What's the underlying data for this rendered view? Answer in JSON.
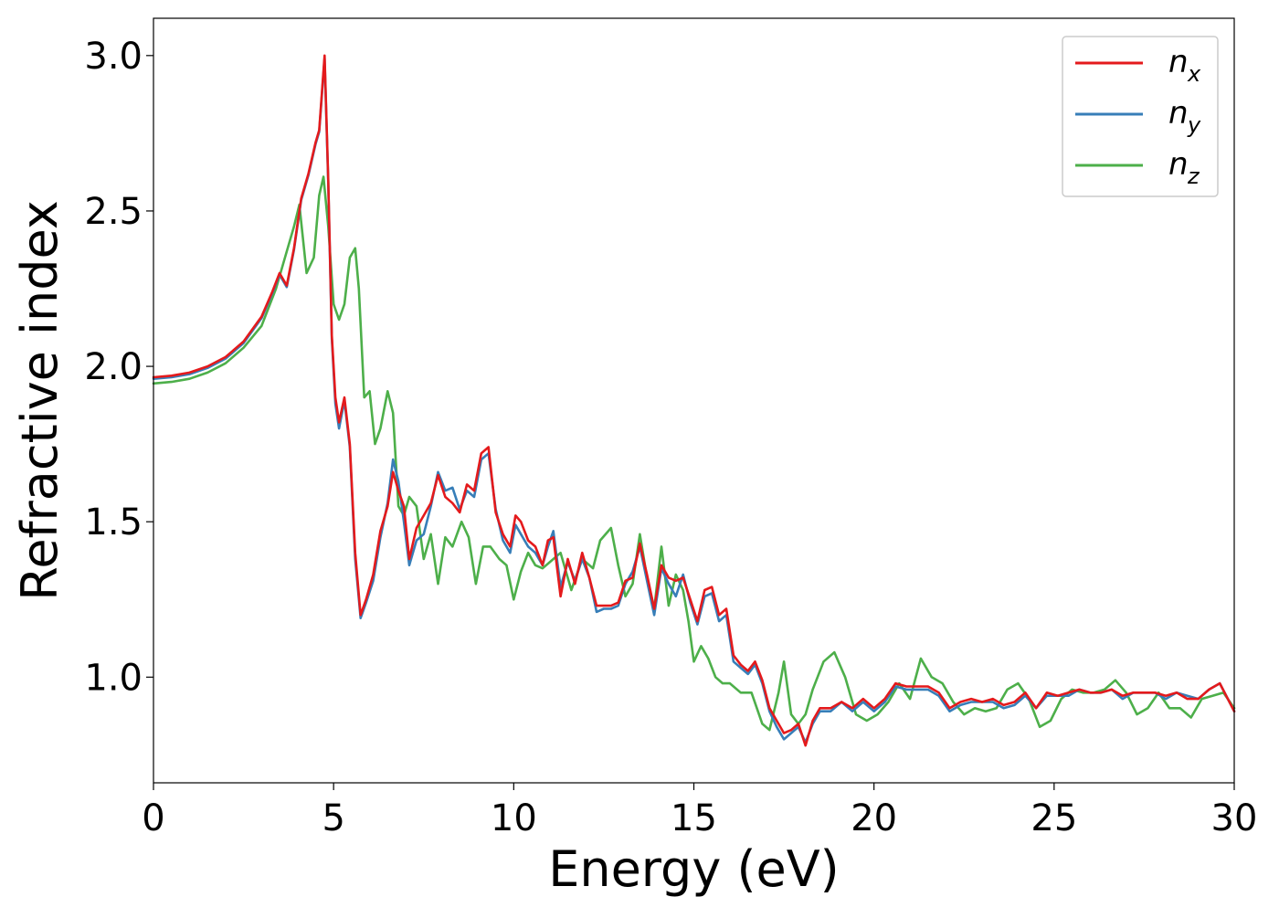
{
  "chart_data": {
    "type": "line",
    "title": "",
    "xlabel": "Energy (eV)",
    "ylabel": "Refractive index",
    "xlim": [
      0,
      30
    ],
    "ylim": [
      0.66,
      3.12
    ],
    "xticks": [
      0,
      5,
      10,
      15,
      20,
      25,
      30
    ],
    "yticks": [
      1.0,
      1.5,
      2.0,
      2.5,
      3.0
    ],
    "xtick_labels": [
      "0",
      "5",
      "10",
      "15",
      "20",
      "25",
      "30"
    ],
    "ytick_labels": [
      "1.0",
      "1.5",
      "2.0",
      "2.5",
      "3.0"
    ],
    "grid": false,
    "legend_position": "top-right",
    "series": [
      {
        "name": "n_x",
        "legend_base": "n",
        "legend_sub": "x",
        "color": "#e41a1c",
        "x": [
          0,
          0.5,
          1.0,
          1.5,
          2.0,
          2.5,
          3.0,
          3.3,
          3.5,
          3.7,
          3.9,
          4.1,
          4.3,
          4.5,
          4.6,
          4.75,
          4.85,
          4.95,
          5.05,
          5.15,
          5.3,
          5.45,
          5.6,
          5.75,
          5.9,
          6.1,
          6.3,
          6.5,
          6.65,
          6.8,
          6.95,
          7.1,
          7.3,
          7.5,
          7.7,
          7.9,
          8.1,
          8.3,
          8.5,
          8.7,
          8.9,
          9.1,
          9.3,
          9.5,
          9.7,
          9.9,
          10.05,
          10.2,
          10.4,
          10.6,
          10.8,
          10.95,
          11.1,
          11.3,
          11.5,
          11.7,
          11.9,
          12.1,
          12.3,
          12.5,
          12.7,
          12.9,
          13.1,
          13.3,
          13.5,
          13.7,
          13.9,
          14.1,
          14.3,
          14.5,
          14.7,
          14.9,
          15.1,
          15.3,
          15.5,
          15.7,
          15.9,
          16.1,
          16.3,
          16.5,
          16.7,
          16.9,
          17.1,
          17.3,
          17.5,
          17.7,
          17.9,
          18.1,
          18.3,
          18.5,
          18.8,
          19.1,
          19.4,
          19.7,
          20.0,
          20.3,
          20.6,
          20.9,
          21.2,
          21.5,
          21.8,
          22.1,
          22.4,
          22.7,
          23.0,
          23.3,
          23.6,
          23.9,
          24.2,
          24.5,
          24.8,
          25.1,
          25.4,
          25.7,
          26.0,
          26.3,
          26.6,
          26.9,
          27.2,
          27.5,
          27.8,
          28.1,
          28.4,
          28.7,
          29.0,
          29.3,
          29.6,
          30.0
        ],
        "y": [
          1.965,
          1.97,
          1.98,
          2.0,
          2.03,
          2.08,
          2.16,
          2.24,
          2.3,
          2.26,
          2.38,
          2.54,
          2.62,
          2.72,
          2.76,
          3.0,
          2.6,
          2.1,
          1.9,
          1.82,
          1.9,
          1.75,
          1.4,
          1.2,
          1.25,
          1.33,
          1.47,
          1.55,
          1.66,
          1.6,
          1.55,
          1.38,
          1.48,
          1.52,
          1.56,
          1.65,
          1.58,
          1.56,
          1.53,
          1.62,
          1.6,
          1.72,
          1.74,
          1.53,
          1.46,
          1.42,
          1.52,
          1.5,
          1.44,
          1.42,
          1.36,
          1.44,
          1.45,
          1.26,
          1.38,
          1.3,
          1.4,
          1.32,
          1.23,
          1.23,
          1.23,
          1.24,
          1.31,
          1.32,
          1.43,
          1.33,
          1.22,
          1.36,
          1.32,
          1.31,
          1.32,
          1.25,
          1.18,
          1.28,
          1.29,
          1.2,
          1.22,
          1.07,
          1.04,
          1.02,
          1.05,
          0.99,
          0.9,
          0.86,
          0.82,
          0.83,
          0.85,
          0.78,
          0.86,
          0.9,
          0.9,
          0.92,
          0.9,
          0.93,
          0.9,
          0.93,
          0.98,
          0.97,
          0.97,
          0.97,
          0.95,
          0.9,
          0.92,
          0.93,
          0.92,
          0.93,
          0.91,
          0.92,
          0.95,
          0.9,
          0.95,
          0.94,
          0.95,
          0.96,
          0.95,
          0.95,
          0.96,
          0.94,
          0.95,
          0.95,
          0.95,
          0.94,
          0.95,
          0.93,
          0.93,
          0.96,
          0.98,
          0.89
        ]
      },
      {
        "name": "n_y",
        "legend_base": "n",
        "legend_sub": "y",
        "color": "#377eb8",
        "x": [
          0,
          0.5,
          1.0,
          1.5,
          2.0,
          2.5,
          3.0,
          3.3,
          3.5,
          3.7,
          3.9,
          4.1,
          4.3,
          4.5,
          4.6,
          4.75,
          4.85,
          4.95,
          5.05,
          5.15,
          5.3,
          5.45,
          5.6,
          5.75,
          5.9,
          6.1,
          6.3,
          6.5,
          6.65,
          6.8,
          6.95,
          7.1,
          7.3,
          7.5,
          7.7,
          7.9,
          8.1,
          8.3,
          8.5,
          8.7,
          8.9,
          9.1,
          9.3,
          9.5,
          9.7,
          9.9,
          10.05,
          10.2,
          10.4,
          10.6,
          10.8,
          10.95,
          11.1,
          11.3,
          11.5,
          11.7,
          11.9,
          12.1,
          12.3,
          12.5,
          12.7,
          12.9,
          13.1,
          13.3,
          13.5,
          13.7,
          13.9,
          14.1,
          14.3,
          14.5,
          14.7,
          14.9,
          15.1,
          15.3,
          15.5,
          15.7,
          15.9,
          16.1,
          16.3,
          16.5,
          16.7,
          16.9,
          17.1,
          17.3,
          17.5,
          17.7,
          17.9,
          18.1,
          18.3,
          18.5,
          18.8,
          19.1,
          19.4,
          19.7,
          20.0,
          20.3,
          20.6,
          20.9,
          21.2,
          21.5,
          21.8,
          22.1,
          22.4,
          22.7,
          23.0,
          23.3,
          23.6,
          23.9,
          24.2,
          24.5,
          24.8,
          25.1,
          25.4,
          25.7,
          26.0,
          26.3,
          26.6,
          26.9,
          27.2,
          27.5,
          27.8,
          28.1,
          28.4,
          28.7,
          29.0,
          29.3,
          29.6,
          30.0
        ],
        "y": [
          1.96,
          1.965,
          1.975,
          1.995,
          2.025,
          2.075,
          2.155,
          2.235,
          2.295,
          2.255,
          2.375,
          2.535,
          2.615,
          2.715,
          2.755,
          2.99,
          2.59,
          2.09,
          1.88,
          1.8,
          1.89,
          1.74,
          1.38,
          1.19,
          1.24,
          1.31,
          1.45,
          1.56,
          1.7,
          1.63,
          1.5,
          1.36,
          1.44,
          1.46,
          1.55,
          1.66,
          1.6,
          1.61,
          1.54,
          1.6,
          1.58,
          1.7,
          1.72,
          1.54,
          1.44,
          1.4,
          1.49,
          1.46,
          1.42,
          1.4,
          1.36,
          1.42,
          1.47,
          1.29,
          1.37,
          1.31,
          1.38,
          1.32,
          1.21,
          1.22,
          1.22,
          1.23,
          1.3,
          1.34,
          1.42,
          1.31,
          1.2,
          1.35,
          1.3,
          1.26,
          1.33,
          1.24,
          1.17,
          1.26,
          1.27,
          1.18,
          1.2,
          1.05,
          1.03,
          1.01,
          1.04,
          0.98,
          0.89,
          0.84,
          0.8,
          0.82,
          0.84,
          0.79,
          0.85,
          0.89,
          0.89,
          0.92,
          0.89,
          0.92,
          0.89,
          0.92,
          0.97,
          0.96,
          0.96,
          0.96,
          0.94,
          0.89,
          0.91,
          0.92,
          0.92,
          0.92,
          0.9,
          0.91,
          0.94,
          0.9,
          0.94,
          0.94,
          0.94,
          0.96,
          0.95,
          0.95,
          0.96,
          0.93,
          0.95,
          0.95,
          0.95,
          0.93,
          0.95,
          0.94,
          0.93,
          0.96,
          0.98,
          0.89
        ]
      },
      {
        "name": "n_z",
        "legend_base": "n",
        "legend_sub": "z",
        "color": "#4daf4a",
        "x": [
          0,
          0.5,
          1.0,
          1.5,
          2.0,
          2.5,
          3.0,
          3.4,
          3.7,
          3.9,
          4.05,
          4.25,
          4.45,
          4.6,
          4.72,
          4.85,
          5.0,
          5.15,
          5.3,
          5.45,
          5.6,
          5.7,
          5.85,
          6.0,
          6.15,
          6.3,
          6.5,
          6.65,
          6.8,
          6.95,
          7.1,
          7.3,
          7.5,
          7.7,
          7.9,
          8.1,
          8.3,
          8.55,
          8.75,
          8.95,
          9.15,
          9.35,
          9.6,
          9.8,
          10.0,
          10.2,
          10.4,
          10.6,
          10.8,
          11.0,
          11.3,
          11.6,
          11.9,
          12.2,
          12.4,
          12.7,
          12.9,
          13.1,
          13.3,
          13.5,
          13.7,
          13.9,
          14.1,
          14.3,
          14.5,
          14.7,
          14.85,
          15.0,
          15.2,
          15.4,
          15.6,
          15.8,
          16.0,
          16.3,
          16.6,
          16.9,
          17.1,
          17.35,
          17.5,
          17.7,
          17.9,
          18.1,
          18.3,
          18.6,
          18.9,
          19.2,
          19.5,
          19.8,
          20.1,
          20.4,
          20.7,
          21.0,
          21.3,
          21.6,
          21.9,
          22.2,
          22.5,
          22.8,
          23.1,
          23.4,
          23.7,
          24.0,
          24.3,
          24.6,
          24.9,
          25.2,
          25.5,
          25.8,
          26.1,
          26.4,
          26.7,
          27.0,
          27.3,
          27.6,
          27.9,
          28.2,
          28.5,
          28.8,
          29.1,
          29.4,
          29.7,
          30.0
        ],
        "y": [
          1.945,
          1.95,
          1.96,
          1.98,
          2.01,
          2.06,
          2.13,
          2.25,
          2.37,
          2.45,
          2.52,
          2.3,
          2.35,
          2.55,
          2.61,
          2.45,
          2.2,
          2.15,
          2.2,
          2.35,
          2.38,
          2.25,
          1.9,
          1.92,
          1.75,
          1.8,
          1.92,
          1.85,
          1.55,
          1.52,
          1.58,
          1.55,
          1.38,
          1.46,
          1.3,
          1.45,
          1.42,
          1.5,
          1.45,
          1.3,
          1.42,
          1.42,
          1.38,
          1.36,
          1.25,
          1.34,
          1.4,
          1.36,
          1.35,
          1.37,
          1.4,
          1.28,
          1.38,
          1.35,
          1.44,
          1.48,
          1.36,
          1.26,
          1.3,
          1.46,
          1.32,
          1.22,
          1.42,
          1.23,
          1.33,
          1.28,
          1.18,
          1.05,
          1.1,
          1.06,
          1.0,
          0.98,
          0.98,
          0.95,
          0.95,
          0.85,
          0.83,
          0.95,
          1.05,
          0.88,
          0.85,
          0.88,
          0.96,
          1.05,
          1.08,
          1.0,
          0.88,
          0.86,
          0.88,
          0.92,
          0.98,
          0.93,
          1.06,
          1.0,
          0.98,
          0.92,
          0.88,
          0.9,
          0.89,
          0.9,
          0.96,
          0.98,
          0.93,
          0.84,
          0.86,
          0.93,
          0.96,
          0.95,
          0.95,
          0.96,
          0.99,
          0.95,
          0.88,
          0.9,
          0.95,
          0.9,
          0.9,
          0.87,
          0.93,
          0.94,
          0.95,
          0.9
        ]
      }
    ]
  }
}
